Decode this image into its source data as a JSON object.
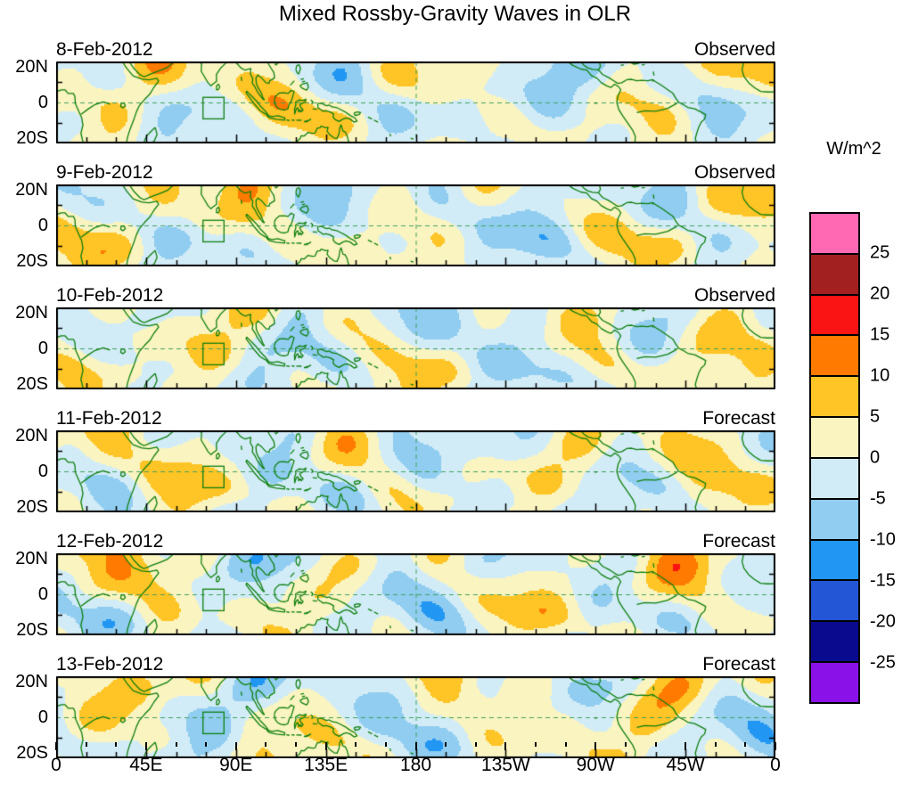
{
  "title": "Mixed Rossby-Gravity Waves in OLR",
  "panels": [
    {
      "date": "8-Feb-2012",
      "type": "Observed"
    },
    {
      "date": "9-Feb-2012",
      "type": "Observed"
    },
    {
      "date": "10-Feb-2012",
      "type": "Observed"
    },
    {
      "date": "11-Feb-2012",
      "type": "Forecast"
    },
    {
      "date": "12-Feb-2012",
      "type": "Forecast"
    },
    {
      "date": "13-Feb-2012",
      "type": "Forecast"
    }
  ],
  "y_axis": {
    "tick_labels": [
      "20N",
      "0",
      "20S"
    ]
  },
  "x_axis": {
    "tick_labels": [
      "0",
      "45E",
      "90E",
      "135E",
      "180",
      "135W",
      "90W",
      "45W",
      "0"
    ]
  },
  "colorbar": {
    "units": "W/m^2",
    "levels": [
      -25,
      -20,
      -15,
      -10,
      -5,
      0,
      5,
      10,
      15,
      20,
      25
    ],
    "tick_labels_top_to_bottom": [
      "25",
      "20",
      "15",
      "10",
      "5",
      "0",
      "-5",
      "-10",
      "-15",
      "-20",
      "-25"
    ],
    "colors": [
      "#8a12e8",
      "#0a0a8f",
      "#2256d6",
      "#2196f3",
      "#90cdf0",
      "#d2ecf7",
      "#faf4c0",
      "#ffc425",
      "#ff7a00",
      "#fa1413",
      "#a32020",
      "#ff69b4"
    ]
  },
  "map": {
    "coast_color": "#0e7f0e",
    "dash_color": "#3fa05f",
    "lon_range": [
      0,
      360
    ],
    "lat_range": [
      -20,
      20
    ],
    "dashed_equator": true,
    "dashed_meridian_deg": 180,
    "highlight_box": {
      "lon": [
        73.5,
        84
      ],
      "lat": [
        -8,
        2.5
      ]
    }
  },
  "chart_data": {
    "type": "heatmap",
    "title": "Mixed Rossby-Gravity Waves in OLR",
    "units": "W/m^2",
    "panels": [
      {
        "date": "8-Feb-2012",
        "label": "Observed"
      },
      {
        "date": "9-Feb-2012",
        "label": "Observed"
      },
      {
        "date": "10-Feb-2012",
        "label": "Observed"
      },
      {
        "date": "11-Feb-2012",
        "label": "Forecast"
      },
      {
        "date": "12-Feb-2012",
        "label": "Forecast"
      },
      {
        "date": "13-Feb-2012",
        "label": "Forecast"
      }
    ],
    "x_axis": {
      "ticks": [
        "0",
        "45E",
        "90E",
        "135E",
        "180",
        "135W",
        "90W",
        "45W",
        "0"
      ],
      "range_deg": [
        0,
        360
      ],
      "tick_step_deg": 45
    },
    "y_axis": {
      "ticks": [
        "20N",
        "0",
        "20S"
      ],
      "range_deg": [
        -20,
        20
      ]
    },
    "contour_levels": [
      -25,
      -20,
      -15,
      -10,
      -5,
      0,
      5,
      10,
      15,
      20,
      25
    ],
    "colors_low_to_high": [
      "#8a12e8",
      "#0a0a8f",
      "#2256d6",
      "#2196f3",
      "#90cdf0",
      "#d2ecf7",
      "#faf4c0",
      "#ffc425",
      "#ff7a00",
      "#fa1413",
      "#a32020",
      "#ff69b4"
    ],
    "approx_anomaly_range": [
      -20,
      20
    ],
    "legend_position": "right",
    "grid": false,
    "notes": "Six filled-contour anomaly maps over 20S-20N, 0-360 longitude, with green coastlines, dashed equator and dashed 180 meridian; small green highlight box near 75-85E on the equator; first three panels Observed, last three Forecast."
  }
}
